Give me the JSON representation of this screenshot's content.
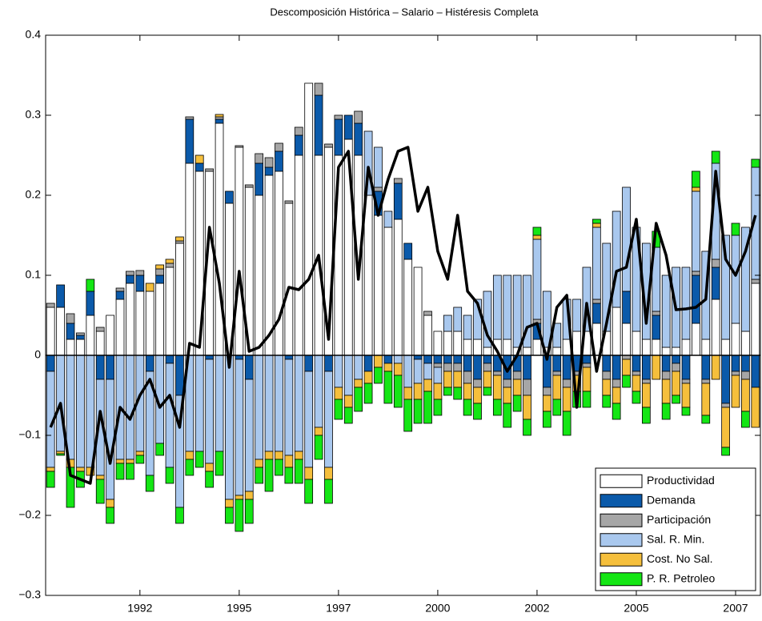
{
  "chart_data": {
    "type": "bar",
    "stacked": true,
    "title": "Descomposición Histórica – Salario – Histéresis Completa",
    "x": [
      1990.25,
      1990.5,
      1990.75,
      1991,
      1991.25,
      1991.5,
      1991.75,
      1992,
      1992.25,
      1992.5,
      1992.75,
      1993,
      1993.25,
      1993.5,
      1993.75,
      1994,
      1994.25,
      1994.5,
      1994.75,
      1995,
      1995.25,
      1995.5,
      1995.75,
      1996,
      1996.25,
      1996.5,
      1996.75,
      1997,
      1997.25,
      1997.5,
      1997.75,
      1998,
      1998.25,
      1998.5,
      1998.75,
      1999,
      1999.25,
      1999.5,
      1999.75,
      2000,
      2000.25,
      2000.5,
      2000.75,
      2001,
      2001.25,
      2001.5,
      2001.75,
      2002,
      2002.25,
      2002.5,
      2002.75,
      2003,
      2003.25,
      2003.5,
      2003.75,
      2004,
      2004.25,
      2004.5,
      2004.75,
      2005,
      2005.25,
      2005.5,
      2005.75,
      2006,
      2006.25,
      2006.5,
      2006.75,
      2007,
      2007.25,
      2007.5,
      2007.75,
      2008
    ],
    "xlim": [
      1990.125,
      2008.125
    ],
    "xticks": [
      {
        "value": 1992.5,
        "label": "1992"
      },
      1995,
      {
        "value": 1997.5,
        "label": "1997"
      },
      2000,
      {
        "value": 2002.5,
        "label": "2002"
      },
      2005,
      {
        "value": 2007.5,
        "label": "2007"
      }
    ],
    "ylim": [
      -0.3,
      0.4
    ],
    "yticks": [
      {
        "value": -0.3,
        "label": "−0.3"
      },
      {
        "value": -0.2,
        "label": "−0.2"
      },
      {
        "value": -0.1,
        "label": "−0.1"
      },
      0,
      0.1,
      0.2,
      0.3,
      0.4
    ],
    "legend": "lower right",
    "series": [
      {
        "name": "Productividad",
        "color": "#ffffff",
        "values": [
          0.06,
          0.06,
          0.02,
          0.02,
          0.05,
          0.03,
          0.05,
          0.07,
          0.09,
          0.08,
          0.08,
          0.09,
          0.11,
          0.14,
          0.24,
          0.23,
          0.23,
          0.29,
          0.19,
          0.26,
          0.21,
          0.2,
          0.225,
          0.23,
          0.19,
          0.25,
          0.34,
          0.25,
          0.26,
          0.25,
          0.27,
          0.25,
          0.2,
          0.175,
          0.16,
          0.17,
          0.12,
          0.11,
          0.05,
          0.03,
          0.03,
          0.03,
          0.02,
          0.02,
          0.01,
          0.02,
          0.02,
          0.01,
          0.01,
          0.02,
          0.01,
          0.01,
          0.02,
          0.03,
          0.03,
          0.04,
          0.03,
          0.06,
          0.04,
          0.03,
          0.02,
          0.02,
          0.01,
          0.01,
          0.02,
          0.04,
          0.02,
          0.07,
          0.02,
          0.04,
          0.03,
          0.09
        ]
      },
      {
        "name": "Demanda",
        "color": "#0b5aaa",
        "values": [
          -0.02,
          0.028,
          0.02,
          0.005,
          0.03,
          -0.03,
          -0.03,
          0.01,
          0.01,
          0.02,
          -0.02,
          0.01,
          -0.01,
          -0.05,
          0.055,
          0.01,
          -0.005,
          0.005,
          0.015,
          -0.005,
          -0.03,
          0.04,
          0.01,
          0.025,
          -0.005,
          0.025,
          -0.02,
          0.075,
          -0.02,
          0.045,
          0.03,
          0.04,
          -0.02,
          0.03,
          -0.01,
          0.045,
          0.02,
          -0.005,
          -0.01,
          -0.01,
          -0.01,
          -0.01,
          -0.02,
          -0.03,
          -0.01,
          -0.02,
          -0.03,
          -0.02,
          -0.03,
          0.02,
          -0.04,
          -0.02,
          -0.03,
          -0.02,
          -0.01,
          0.025,
          -0.02,
          -0.03,
          0.04,
          -0.02,
          -0.03,
          0.03,
          -0.02,
          -0.01,
          -0.03,
          0.06,
          -0.03,
          0.04,
          -0.06,
          -0.02,
          -0.02,
          -0.04
        ]
      },
      {
        "name": "Participación",
        "color": "#a6a6a6",
        "values": [
          0.005,
          0,
          0.012,
          0.003,
          0,
          0.005,
          0,
          0.004,
          0.005,
          0.006,
          0,
          0.008,
          0.005,
          0.003,
          0.003,
          0,
          0.003,
          0.003,
          0,
          0.002,
          0.003,
          0.012,
          0.012,
          0.01,
          0.003,
          0.01,
          0,
          0.015,
          0.004,
          0.005,
          0,
          0.015,
          0,
          0.005,
          0,
          0.006,
          0,
          0,
          0.005,
          -0.005,
          -0.01,
          -0.01,
          -0.015,
          -0.01,
          -0.01,
          -0.005,
          -0.01,
          -0.01,
          -0.02,
          0.005,
          -0.01,
          -0.005,
          -0.01,
          -0.005,
          -0.005,
          0.005,
          -0.01,
          -0.01,
          -0.005,
          -0.005,
          -0.005,
          0.005,
          -0.01,
          -0.01,
          -0.005,
          0.005,
          -0.005,
          0.01,
          -0.005,
          -0.005,
          -0.01,
          0.005
        ]
      },
      {
        "name": "Sal. R. Min.",
        "color": "#a9c8ee",
        "values": [
          -0.12,
          -0.12,
          -0.13,
          -0.14,
          -0.14,
          -0.12,
          -0.15,
          -0.13,
          -0.13,
          -0.12,
          -0.13,
          -0.11,
          -0.13,
          -0.14,
          -0.12,
          -0.12,
          -0.13,
          -0.12,
          -0.18,
          -0.17,
          -0.14,
          -0.13,
          -0.12,
          -0.12,
          -0.12,
          -0.12,
          -0.12,
          -0.09,
          -0.12,
          -0.04,
          -0.05,
          -0.03,
          0.08,
          0.05,
          0.02,
          -0.01,
          -0.04,
          -0.03,
          -0.02,
          -0.02,
          0.02,
          0.03,
          0.03,
          0.05,
          0.07,
          0.08,
          0.08,
          0.09,
          0.09,
          0.1,
          0.07,
          0.03,
          0.05,
          0.04,
          0.08,
          0.09,
          0.11,
          0.12,
          0.13,
          0.13,
          0.12,
          0.08,
          0.09,
          0.1,
          0.09,
          0.1,
          0.11,
          0.12,
          0.13,
          0.11,
          0.13,
          0.14
        ]
      },
      {
        "name": "Cost. No Sal.",
        "color": "#f5bf3c",
        "values": [
          -0.005,
          -0.003,
          -0.01,
          -0.005,
          -0.01,
          -0.005,
          -0.01,
          -0.005,
          -0.005,
          -0.005,
          0.01,
          0.005,
          0.005,
          0.005,
          -0.01,
          0.01,
          -0.01,
          0.003,
          -0.01,
          -0.005,
          -0.01,
          -0.01,
          -0.01,
          -0.01,
          -0.015,
          -0.01,
          -0.015,
          -0.01,
          -0.015,
          -0.015,
          -0.015,
          -0.01,
          -0.015,
          -0.015,
          -0.01,
          -0.015,
          -0.015,
          -0.02,
          -0.015,
          -0.02,
          -0.02,
          -0.02,
          -0.02,
          -0.02,
          -0.02,
          -0.03,
          -0.02,
          -0.02,
          -0.03,
          0.005,
          -0.02,
          -0.03,
          -0.03,
          -0.02,
          -0.03,
          0.005,
          -0.02,
          -0.02,
          -0.02,
          -0.02,
          -0.03,
          -0.03,
          -0.03,
          -0.03,
          -0.03,
          0.005,
          -0.04,
          -0.03,
          -0.05,
          -0.04,
          -0.04,
          -0.05
        ]
      },
      {
        "name": "P. R. Petroleo",
        "color": "#14e614",
        "values": [
          -0.02,
          -0.002,
          -0.05,
          -0.02,
          0.015,
          -0.03,
          -0.02,
          -0.02,
          -0.02,
          -0.01,
          -0.02,
          -0.015,
          -0.02,
          -0.02,
          -0.02,
          -0.02,
          -0.02,
          -0.03,
          -0.02,
          -0.04,
          -0.03,
          -0.02,
          -0.04,
          -0.02,
          -0.02,
          -0.03,
          -0.03,
          -0.03,
          -0.03,
          -0.025,
          -0.02,
          -0.03,
          -0.025,
          -0.02,
          -0.04,
          -0.04,
          -0.04,
          -0.03,
          -0.04,
          -0.02,
          -0.01,
          -0.015,
          -0.02,
          -0.02,
          -0.01,
          -0.02,
          -0.03,
          -0.02,
          -0.02,
          0.01,
          -0.02,
          -0.02,
          -0.03,
          -0.02,
          -0.02,
          0.005,
          -0.015,
          -0.02,
          -0.015,
          -0.015,
          -0.02,
          0.02,
          -0.02,
          -0.01,
          -0.01,
          0.02,
          -0.01,
          0.015,
          -0.01,
          0.015,
          -0.02,
          0.01
        ]
      }
    ],
    "line": {
      "color": "#000000",
      "values": [
        -0.09,
        -0.06,
        -0.15,
        -0.155,
        -0.16,
        -0.07,
        -0.135,
        -0.065,
        -0.08,
        -0.05,
        -0.03,
        -0.065,
        -0.05,
        -0.09,
        0.015,
        0.01,
        0.16,
        0.09,
        -0.015,
        0.105,
        0.005,
        0.01,
        0.025,
        0.045,
        0.085,
        0.082,
        0.095,
        0.125,
        0.02,
        0.235,
        0.255,
        0.095,
        0.235,
        0.175,
        0.22,
        0.255,
        0.26,
        0.18,
        0.21,
        0.13,
        0.095,
        0.175,
        0.08,
        0.065,
        0.025,
        0.005,
        -0.02,
        0.0,
        0.035,
        0.04,
        -0.005,
        0.06,
        0.075,
        -0.065,
        0.065,
        -0.02,
        0.04,
        0.105,
        0.11,
        0.17,
        0.04,
        0.165,
        0.125,
        0.057,
        0.058,
        0.06,
        0.07,
        0.23,
        0.12,
        0.1,
        0.13,
        0.175
      ]
    }
  }
}
